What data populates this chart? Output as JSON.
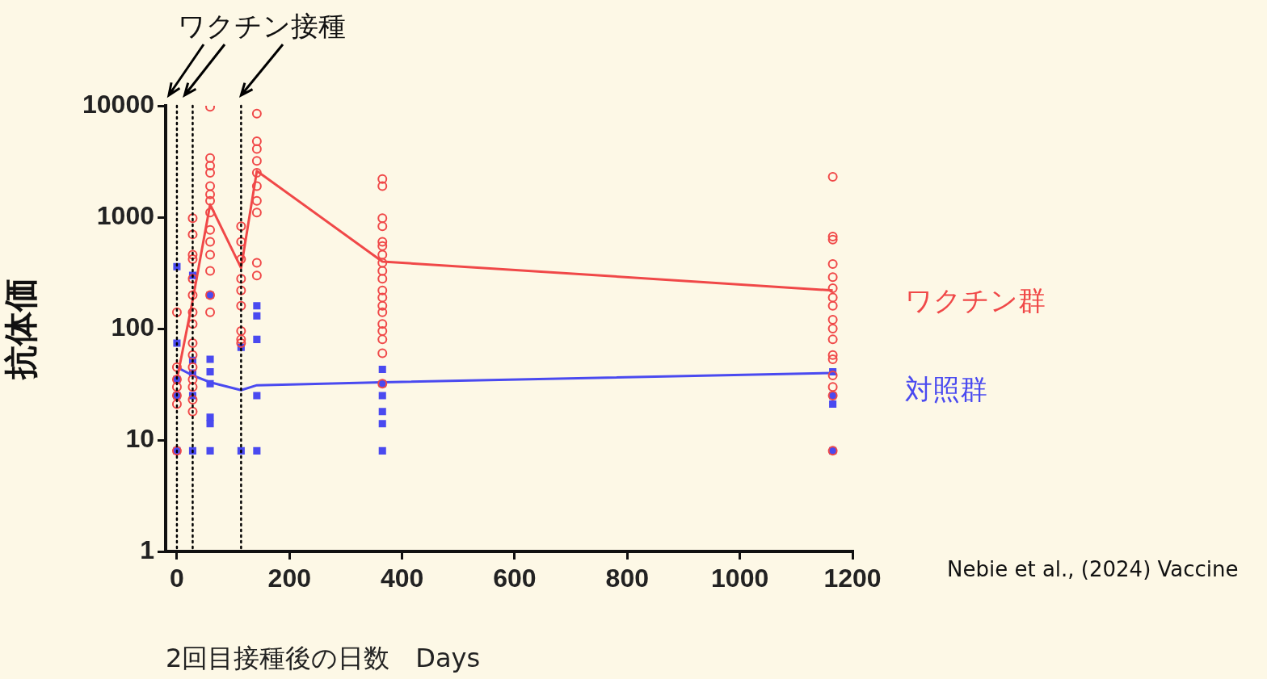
{
  "chart_data": {
    "type": "scatter",
    "xlabel": "2回目接種後の日数　Days",
    "ylabel": "抗体価",
    "log": "y",
    "grid": false,
    "legend": "right",
    "xlim": [
      -20,
      1200
    ],
    "xticks": [
      0,
      200,
      400,
      600,
      800,
      1000,
      1200
    ],
    "ylim": [
      1,
      10000
    ],
    "yticks": [
      1,
      10,
      100,
      1000,
      10000
    ],
    "annotations": [
      "ワクチン接種",
      "Nebie et al., (2024) Vaccine"
    ],
    "ref_lines": [
      {
        "axis": "x",
        "value": 0,
        "color": "#000000",
        "line_style": "dotted"
      },
      {
        "axis": "x",
        "value": 28,
        "color": "#000000",
        "line_style": "dotted"
      },
      {
        "axis": "x",
        "value": 114,
        "color": "#000000",
        "line_style": "dotted"
      }
    ],
    "series": [
      {
        "name": "ワクチン群",
        "type": "scatter",
        "marker": "circle",
        "color": "#f04848",
        "x": [
          0,
          0,
          0,
          0,
          0,
          0,
          0,
          28,
          28,
          28,
          28,
          28,
          28,
          28,
          28,
          28,
          28,
          28,
          28,
          28,
          28,
          28,
          59,
          59,
          59,
          59,
          59,
          59,
          59,
          59,
          59,
          59,
          59,
          59,
          59,
          59,
          114,
          114,
          114,
          114,
          114,
          114,
          114,
          114,
          114,
          142,
          142,
          142,
          142,
          142,
          142,
          142,
          142,
          142,
          142,
          365,
          365,
          365,
          365,
          365,
          365,
          365,
          365,
          365,
          365,
          365,
          365,
          365,
          365,
          365,
          365,
          365,
          365,
          365,
          1165,
          1165,
          1165,
          1165,
          1165,
          1165,
          1165,
          1165,
          1165,
          1165,
          1165,
          1165,
          1165,
          1165,
          1165,
          1165,
          1165
        ],
        "values": [
          45,
          35,
          30,
          25,
          21,
          140,
          8,
          980,
          700,
          460,
          420,
          280,
          200,
          140,
          110,
          74,
          58,
          45,
          35,
          30,
          23,
          18,
          9800,
          3400,
          2900,
          2500,
          1900,
          1600,
          1400,
          1100,
          770,
          600,
          460,
          330,
          200,
          140,
          830,
          600,
          420,
          280,
          220,
          160,
          95,
          80,
          74,
          8500,
          4800,
          4100,
          3200,
          2500,
          1900,
          1400,
          1100,
          390,
          300,
          2200,
          1900,
          980,
          830,
          600,
          550,
          460,
          390,
          330,
          280,
          220,
          190,
          160,
          140,
          110,
          95,
          80,
          60,
          32,
          2300,
          670,
          630,
          380,
          290,
          230,
          190,
          160,
          120,
          100,
          80,
          58,
          53,
          38,
          30,
          25,
          8
        ]
      },
      {
        "name": "対照群",
        "type": "scatter",
        "marker": "square",
        "color": "#4a4af0",
        "x": [
          0,
          0,
          0,
          0,
          0,
          28,
          28,
          28,
          28,
          28,
          59,
          59,
          59,
          59,
          59,
          59,
          59,
          114,
          114,
          142,
          142,
          142,
          142,
          142,
          365,
          365,
          365,
          365,
          365,
          365,
          1165,
          1165,
          1165,
          1165
        ],
        "values": [
          360,
          74,
          35,
          25,
          8,
          300,
          52,
          40,
          25,
          8,
          200,
          53,
          41,
          32,
          16,
          14,
          8,
          68,
          8,
          160,
          130,
          80,
          25,
          8,
          43,
          32,
          25,
          18,
          14,
          8,
          41,
          25,
          21,
          8
        ]
      },
      {
        "type": "line",
        "marker": "none",
        "color": "#f04848",
        "x": [
          0,
          28,
          59,
          114,
          142,
          365,
          1165
        ],
        "values": [
          35,
          180,
          1300,
          350,
          2600,
          400,
          220
        ]
      },
      {
        "type": "line",
        "marker": "none",
        "color": "#4a4af0",
        "x": [
          0,
          28,
          59,
          114,
          142,
          365,
          1165
        ],
        "values": [
          45,
          38,
          33,
          28,
          31,
          33,
          40
        ]
      }
    ]
  }
}
